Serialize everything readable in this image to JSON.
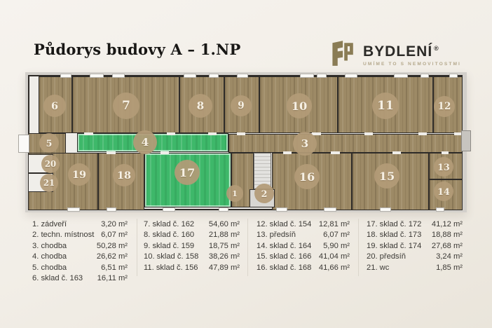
{
  "header": {
    "title": "Půdorys budovy A – 1.NP"
  },
  "logo": {
    "brand": "BYDLENÍ",
    "registered": "®",
    "tagline": "UMÍME TO S NEMOVITOSTMI",
    "icon": "bydleni-logo-icon",
    "icon_color": "#8a7c55"
  },
  "plan": {
    "markers": [
      "1",
      "2",
      "3",
      "4",
      "5",
      "6",
      "7",
      "8",
      "9",
      "10",
      "11",
      "12",
      "13",
      "14",
      "15",
      "16",
      "17",
      "18",
      "19",
      "20",
      "21"
    ],
    "highlighted_rooms": [
      "4",
      "17"
    ],
    "colors": {
      "wall": "#2e2b28",
      "wood_floor": "#9d8a66",
      "highlight": "#3eb86a",
      "marker": "#b39b77",
      "background": "#f2eee7"
    }
  },
  "legend": {
    "columns": [
      [
        {
          "label": "1. zádveří",
          "area": "3,20 m²"
        },
        {
          "label": "2. techn. místnost",
          "area": "6,07 m²"
        },
        {
          "label": "3. chodba",
          "area": "50,28 m²"
        },
        {
          "label": "4. chodba",
          "area": "26,62 m²"
        },
        {
          "label": "5. chodba",
          "area": "6,51 m²"
        },
        {
          "label": "6. sklad č. 163",
          "area": "16,11 m²"
        }
      ],
      [
        {
          "label": "7. sklad č. 162",
          "area": "54,60 m²"
        },
        {
          "label": "8. sklad č. 160",
          "area": "21,88 m²"
        },
        {
          "label": "9. sklad č. 159",
          "area": "18,75 m²"
        },
        {
          "label": "10. sklad č. 158",
          "area": "38,26 m²"
        },
        {
          "label": "11. sklad č. 156",
          "area": "47,89 m²"
        }
      ],
      [
        {
          "label": "12. sklad č. 154",
          "area": "12,81 m²"
        },
        {
          "label": "13. předsíň",
          "area": "6,07 m²"
        },
        {
          "label": "14. sklad č. 164",
          "area": "5,90 m²"
        },
        {
          "label": "15. sklad č. 166",
          "area": "41,04 m²"
        },
        {
          "label": "16. sklad č. 168",
          "area": "41,66 m²"
        }
      ],
      [
        {
          "label": "17. sklad č. 172",
          "area": "41,12 m²"
        },
        {
          "label": "18. sklad č. 173",
          "area": "18,88 m²"
        },
        {
          "label": "19. sklad č. 174",
          "area": "27,68 m²"
        },
        {
          "label": "20. předsíň",
          "area": "3,24 m²"
        },
        {
          "label": "21. wc",
          "area": "1,85 m²"
        }
      ]
    ]
  }
}
